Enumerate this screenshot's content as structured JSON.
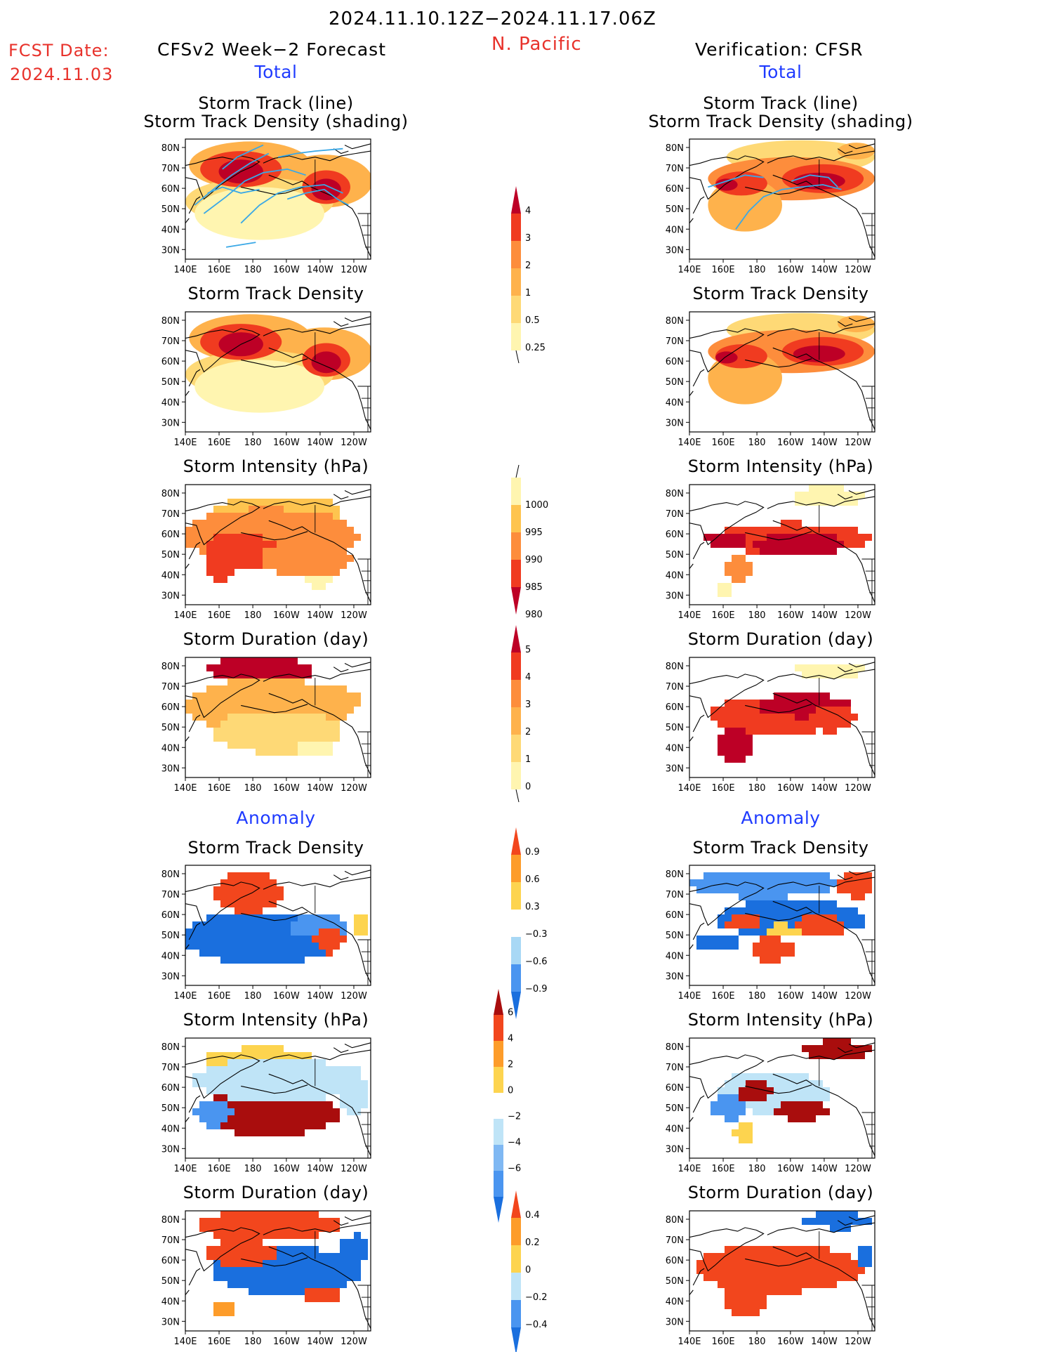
{
  "header": {
    "date_range": "2024.11.10.12Z−2024.11.17.06Z",
    "region": "N. Pacific",
    "fcst_label": "FCST Date:",
    "fcst_date": "2024.11.03",
    "left_title": "CFSv2 Week−2 Forecast",
    "right_title": "Verification: CFSR",
    "total_label": "Total",
    "anomaly_label": "Anomaly"
  },
  "panel_titles": {
    "track_line": "Storm Track (line)",
    "track_density_shading": "Storm Track Density (shading)",
    "track_density": "Storm Track Density",
    "intensity": "Storm Intensity (hPa)",
    "duration": "Storm Duration (day)"
  },
  "axes": {
    "lon_ticks": [
      "140E",
      "160E",
      "180",
      "160W",
      "140W",
      "120W"
    ],
    "lat_ticks": [
      "80N",
      "70N",
      "60N",
      "50N",
      "40N",
      "30N"
    ]
  },
  "colorbars": {
    "density_total": {
      "labels": [
        "0.25",
        "0.5",
        "1",
        "2",
        "3",
        "4"
      ],
      "colors": [
        "#fff5b0",
        "#fed976",
        "#feb24c",
        "#fd8d3c",
        "#f03b20",
        "#bd0026"
      ]
    },
    "intensity_total": {
      "labels": [
        "1000",
        "995",
        "990",
        "985",
        "980"
      ],
      "colors": [
        "#fff5b0",
        "#fec44f",
        "#fd8d3c",
        "#f03b20",
        "#bd0026"
      ]
    },
    "duration_total": {
      "labels": [
        "0",
        "1",
        "2",
        "3",
        "4",
        "5"
      ],
      "colors": [
        "#fff5b0",
        "#fed976",
        "#feb24c",
        "#fd8d3c",
        "#f03b20",
        "#bd0026"
      ]
    },
    "density_anom": {
      "labels": [
        "−0.9",
        "−0.6",
        "−0.3",
        "0.3",
        "0.6",
        "0.9"
      ],
      "colors": [
        "#1a6fde",
        "#4a95f0",
        "#a8d8f5",
        "#ffffff",
        "#fdd44f",
        "#fd9c2a",
        "#f2461d"
      ]
    },
    "intensity_anom": {
      "labels": [
        "−6",
        "−4",
        "−2",
        "0",
        "2",
        "4",
        "6"
      ],
      "colors": [
        "#1a6fde",
        "#4a95f0",
        "#7fb8f3",
        "#bfe4f7",
        "#ffffff",
        "#fdd44f",
        "#fd9c2a",
        "#f2461d",
        "#a90d0d"
      ]
    },
    "duration_anom": {
      "labels": [
        "−0.4",
        "−0.2",
        "0",
        "0.2",
        "0.4"
      ],
      "colors": [
        "#1a6fde",
        "#4a95f0",
        "#bfe4f7",
        "#fdd44f",
        "#fd9c2a",
        "#f2461d"
      ]
    }
  }
}
